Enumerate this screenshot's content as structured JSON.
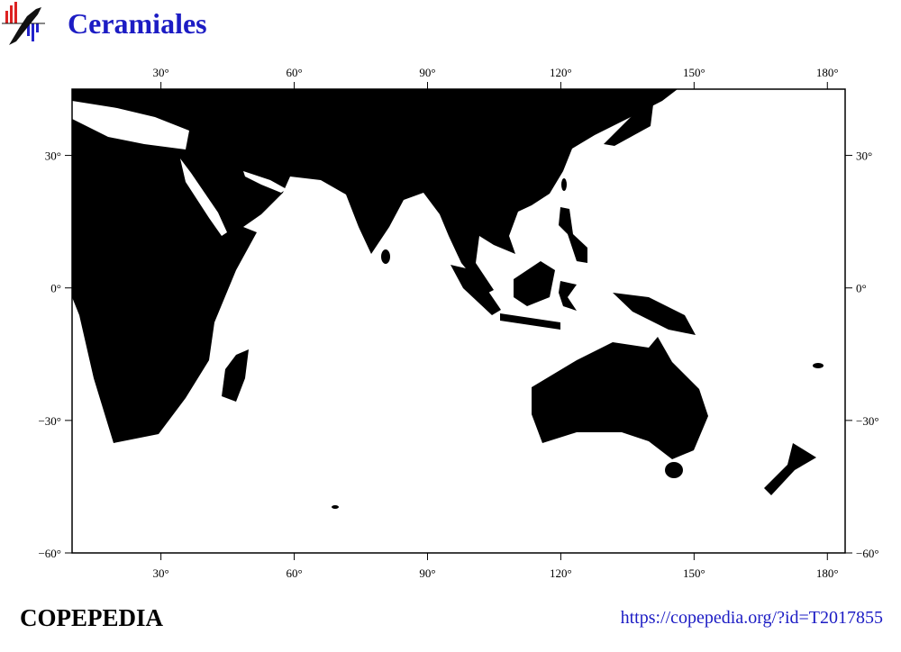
{
  "header": {
    "title": "Ceramiales"
  },
  "map": {
    "xlim": [
      10,
      184
    ],
    "ylim": [
      -60,
      45
    ],
    "xticks": [
      {
        "value": 30,
        "label": "30°"
      },
      {
        "value": 60,
        "label": "60°"
      },
      {
        "value": 90,
        "label": "90°"
      },
      {
        "value": 120,
        "label": "120°"
      },
      {
        "value": 150,
        "label": "150°"
      },
      {
        "value": 180,
        "label": "180°"
      }
    ],
    "yticks": [
      {
        "value": 30,
        "label": "30°"
      },
      {
        "value": 0,
        "label": "0°"
      },
      {
        "value": -30,
        "label": "−30°"
      },
      {
        "value": -60,
        "label": "−60°"
      }
    ]
  },
  "footer": {
    "brand": "COPEPEDIA",
    "url": "https://copepedia.org/?id=T2017855"
  }
}
